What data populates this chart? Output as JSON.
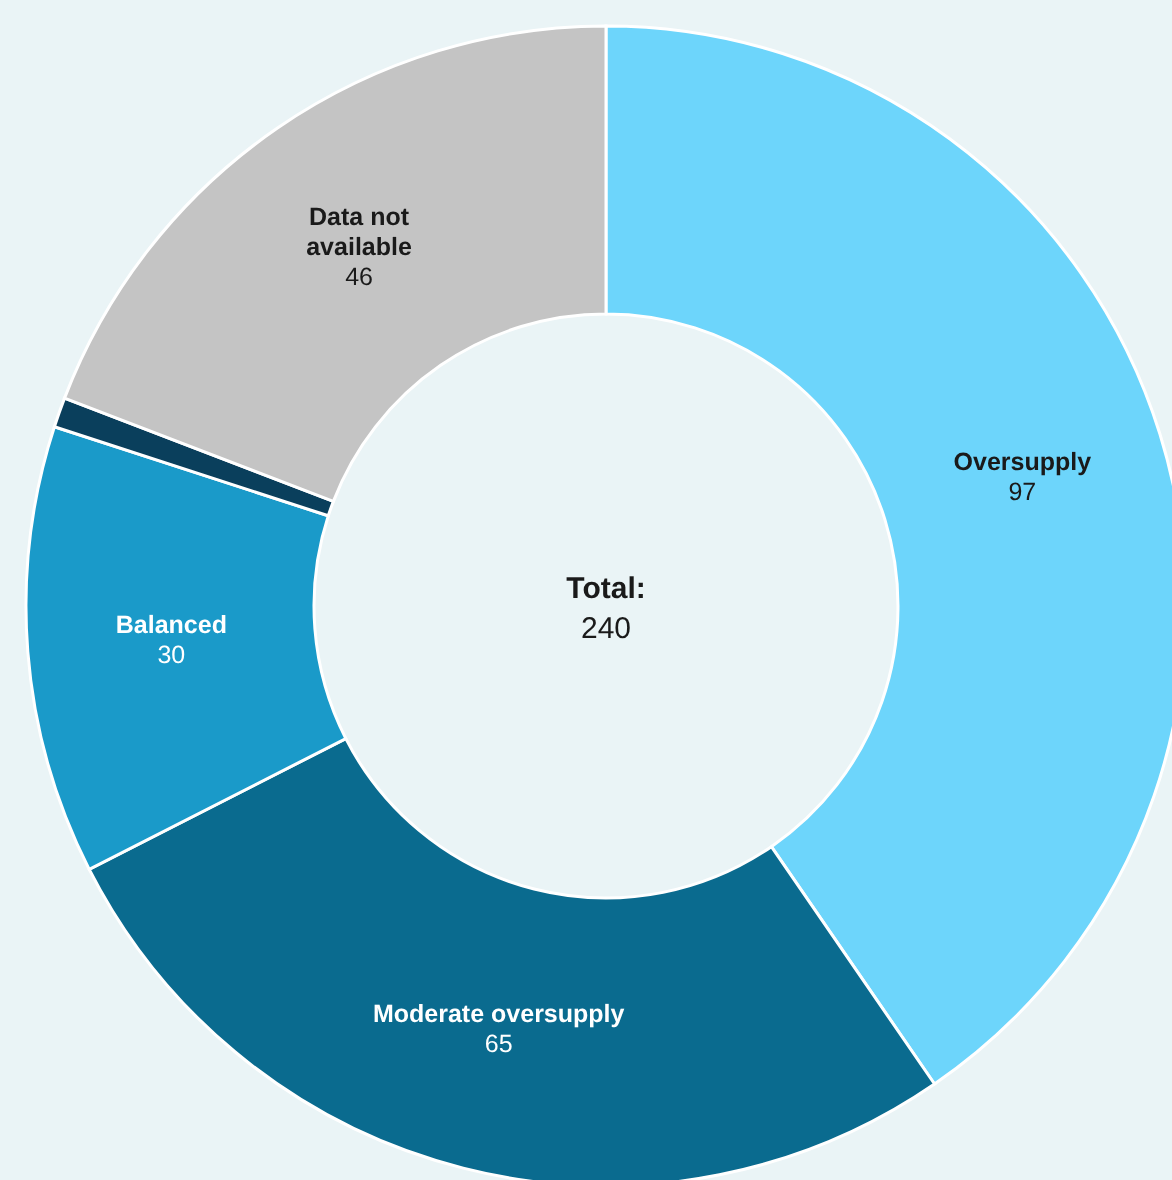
{
  "chart_data": {
    "type": "donut",
    "categories": [
      "Oversupply",
      "Moderate oversupply",
      "Balanced",
      null,
      "Data not\navailable"
    ],
    "values": [
      97,
      65,
      30,
      2,
      46
    ],
    "colors": [
      "#6dd5fb",
      "#0a6b8f",
      "#1a9ac9",
      "#0a3f5c",
      "#c4c4c4"
    ],
    "value_labels": [
      "97",
      "65",
      "30",
      null,
      "46"
    ],
    "annotations": [
      "Total:",
      "240"
    ]
  }
}
